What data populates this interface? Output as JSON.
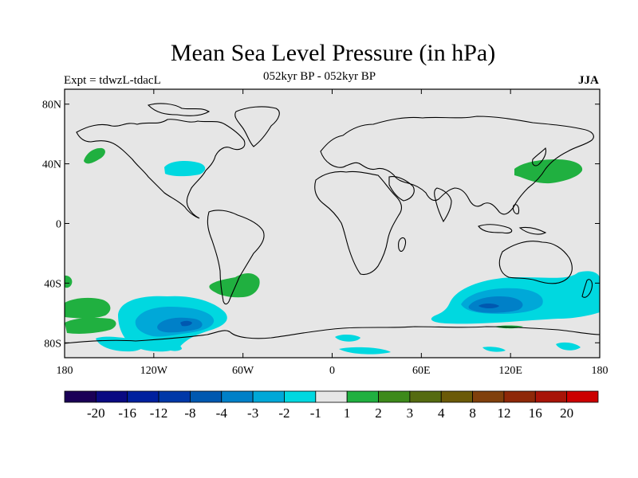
{
  "header": {
    "title": "Mean Sea Level Pressure (in hPa)",
    "left_label": "Expt = tdwzL-tdacL",
    "center_label": "052kyr BP - 052kyr BP",
    "right_label": "JJA"
  },
  "axes": {
    "lat_ticks": [
      {
        "value": 80,
        "label": "80N"
      },
      {
        "value": 40,
        "label": "40N"
      },
      {
        "value": 0,
        "label": "0"
      },
      {
        "value": -40,
        "label": "40S"
      },
      {
        "value": -80,
        "label": "80S"
      }
    ],
    "lon_ticks": [
      {
        "value": -180,
        "label": "180"
      },
      {
        "value": -120,
        "label": "120W"
      },
      {
        "value": -60,
        "label": "60W"
      },
      {
        "value": 0,
        "label": "0"
      },
      {
        "value": 60,
        "label": "60E"
      },
      {
        "value": 120,
        "label": "120E"
      },
      {
        "value": 180,
        "label": "180"
      }
    ],
    "lon_range": [
      -180,
      180
    ],
    "lat_range": [
      -90,
      90
    ]
  },
  "colorbar": {
    "colors": [
      "#1a0056",
      "#0a0a82",
      "#00209e",
      "#0038a8",
      "#0058b0",
      "#0080c8",
      "#00a8d8",
      "#00d8e0",
      "#e6e6e6",
      "#20b040",
      "#3d8a1a",
      "#556b10",
      "#6b5a08",
      "#80400c",
      "#8e2808",
      "#a81408",
      "#cc0000"
    ],
    "labels": [
      "-20",
      "-16",
      "-12",
      "-8",
      "-4",
      "-3",
      "-2",
      "-1",
      "1",
      "2",
      "3",
      "4",
      "8",
      "12",
      "16",
      "20"
    ]
  },
  "colors": {
    "map_background": "#e6e6e6",
    "cyan_contour": "#00d8e0",
    "light_blue_contour": "#00a8d8",
    "blue_contour": "#0080c8",
    "green_contour": "#20b040"
  }
}
